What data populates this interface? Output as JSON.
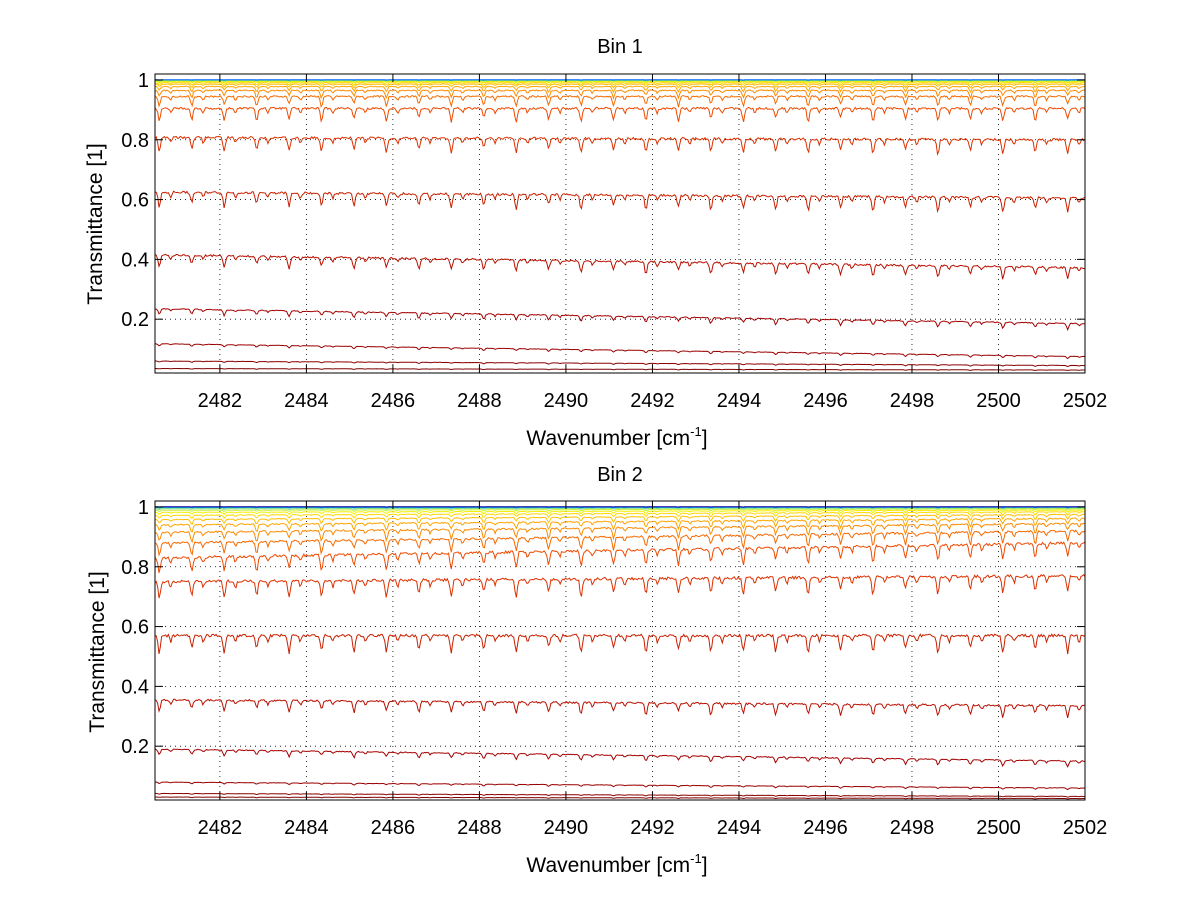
{
  "chart_data": [
    {
      "type": "line",
      "title": "Bin 1",
      "xlabel": "Wavenumber [cm",
      "xlabel_sup": "-1",
      "xlabel_end": "]",
      "ylabel": "Transmittance [1]",
      "xlim": [
        2480.5,
        2502
      ],
      "ylim": [
        0.02,
        1.02
      ],
      "xticks": [
        2482,
        2484,
        2486,
        2488,
        2490,
        2492,
        2494,
        2496,
        2498,
        2500,
        2502
      ],
      "yticks": [
        0.2,
        0.4,
        0.6,
        0.8,
        1
      ],
      "xtick_labels": [
        "2482",
        "2484",
        "2486",
        "2488",
        "2490",
        "2492",
        "2494",
        "2496",
        "2498",
        "2500",
        "2502"
      ],
      "ytick_labels": [
        "0.2",
        "0.4",
        "0.6",
        "0.8",
        "1"
      ],
      "grid": true,
      "line_spacing_cm": 0.75,
      "line_phase_cm": 2480.6,
      "series": [
        {
          "base_start": 0.035,
          "base_end": 0.03,
          "depth": 0.002,
          "color": "#7f0000"
        },
        {
          "base_start": 0.06,
          "base_end": 0.045,
          "depth": 0.004,
          "color": "#8b0000"
        },
        {
          "base_start": 0.118,
          "base_end": 0.075,
          "depth": 0.008,
          "color": "#9a0000"
        },
        {
          "base_start": 0.235,
          "base_end": 0.185,
          "depth": 0.02,
          "color": "#a50000"
        },
        {
          "base_start": 0.415,
          "base_end": 0.372,
          "depth": 0.04,
          "color": "#b81000"
        },
        {
          "base_start": 0.625,
          "base_end": 0.605,
          "depth": 0.05,
          "color": "#c82000"
        },
        {
          "base_start": 0.808,
          "base_end": 0.8,
          "depth": 0.05,
          "color": "#dd3000"
        },
        {
          "base_start": 0.905,
          "base_end": 0.905,
          "depth": 0.045,
          "color": "#ee4a00"
        },
        {
          "base_start": 0.945,
          "base_end": 0.945,
          "depth": 0.035,
          "color": "#f56a00"
        },
        {
          "base_start": 0.965,
          "base_end": 0.965,
          "depth": 0.025,
          "color": "#fb8a00"
        },
        {
          "base_start": 0.978,
          "base_end": 0.978,
          "depth": 0.018,
          "color": "#ffa400"
        },
        {
          "base_start": 0.986,
          "base_end": 0.986,
          "depth": 0.012,
          "color": "#ffbf00"
        },
        {
          "base_start": 0.991,
          "base_end": 0.991,
          "depth": 0.008,
          "color": "#ffd800"
        },
        {
          "base_start": 0.995,
          "base_end": 0.995,
          "depth": 0.005,
          "color": "#f2ee00"
        },
        {
          "base_start": 0.997,
          "base_end": 0.997,
          "depth": 0.003,
          "color": "#c8f03c"
        },
        {
          "base_start": 0.999,
          "base_end": 0.999,
          "depth": 0.002,
          "color": "#7fe07f"
        },
        {
          "base_start": 1.0,
          "base_end": 1.0,
          "depth": 0.001,
          "color": "#1fbfbf"
        },
        {
          "base_start": 1.001,
          "base_end": 1.001,
          "depth": 0.001,
          "color": "#0060ff"
        }
      ]
    },
    {
      "type": "line",
      "title": "Bin 2",
      "xlabel": "Wavenumber [cm",
      "xlabel_sup": "-1",
      "xlabel_end": "]",
      "ylabel": "Transmittance [1]",
      "xlim": [
        2480.5,
        2502
      ],
      "ylim": [
        0.02,
        1.02
      ],
      "xticks": [
        2482,
        2484,
        2486,
        2488,
        2490,
        2492,
        2494,
        2496,
        2498,
        2500,
        2502
      ],
      "yticks": [
        0.2,
        0.4,
        0.6,
        0.8,
        1
      ],
      "xtick_labels": [
        "2482",
        "2484",
        "2486",
        "2488",
        "2490",
        "2492",
        "2494",
        "2496",
        "2498",
        "2500",
        "2502"
      ],
      "ytick_labels": [
        "0.2",
        "0.4",
        "0.6",
        "0.8",
        "1"
      ],
      "grid": true,
      "line_spacing_cm": 0.75,
      "line_phase_cm": 2480.6,
      "series": [
        {
          "base_start": 0.03,
          "base_end": 0.025,
          "depth": 0.002,
          "color": "#7f0000"
        },
        {
          "base_start": 0.042,
          "base_end": 0.032,
          "depth": 0.003,
          "color": "#8b0000"
        },
        {
          "base_start": 0.08,
          "base_end": 0.06,
          "depth": 0.006,
          "color": "#9a0000"
        },
        {
          "base_start": 0.19,
          "base_end": 0.15,
          "depth": 0.02,
          "color": "#a50000"
        },
        {
          "base_start": 0.355,
          "base_end": 0.335,
          "depth": 0.04,
          "color": "#b81000"
        },
        {
          "base_start": 0.57,
          "base_end": 0.57,
          "depth": 0.06,
          "color": "#c82000"
        },
        {
          "base_start": 0.75,
          "base_end": 0.77,
          "depth": 0.06,
          "color": "#dd3000"
        },
        {
          "base_start": 0.83,
          "base_end": 0.88,
          "depth": 0.055,
          "color": "#ee4a00"
        },
        {
          "base_start": 0.88,
          "base_end": 0.92,
          "depth": 0.045,
          "color": "#f56a00"
        },
        {
          "base_start": 0.915,
          "base_end": 0.945,
          "depth": 0.035,
          "color": "#fb8a00"
        },
        {
          "base_start": 0.94,
          "base_end": 0.962,
          "depth": 0.026,
          "color": "#ffa400"
        },
        {
          "base_start": 0.958,
          "base_end": 0.975,
          "depth": 0.018,
          "color": "#ffbf00"
        },
        {
          "base_start": 0.972,
          "base_end": 0.984,
          "depth": 0.012,
          "color": "#ffd800"
        },
        {
          "base_start": 0.982,
          "base_end": 0.99,
          "depth": 0.008,
          "color": "#f2ee00"
        },
        {
          "base_start": 0.989,
          "base_end": 0.994,
          "depth": 0.005,
          "color": "#c8f03c"
        },
        {
          "base_start": 0.994,
          "base_end": 0.997,
          "depth": 0.003,
          "color": "#7fe07f"
        },
        {
          "base_start": 0.998,
          "base_end": 0.999,
          "depth": 0.002,
          "color": "#1fbfbf"
        },
        {
          "base_start": 1.0,
          "base_end": 1.0,
          "depth": 0.001,
          "color": "#0060ff"
        },
        {
          "base_start": 1.001,
          "base_end": 1.001,
          "depth": 0.001,
          "color": "#0000a0"
        }
      ]
    }
  ]
}
